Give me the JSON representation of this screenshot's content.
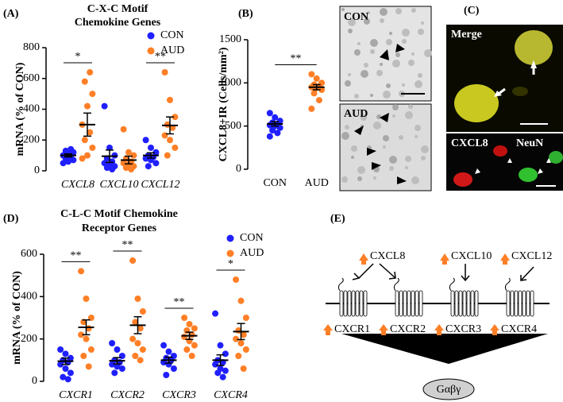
{
  "chart_data": [
    {
      "type": "dotplot",
      "panel": "(A)",
      "title": [
        "C-X-C Motif",
        "Chemokine Genes"
      ],
      "y_label": "mRNA (% of CON)",
      "categories": [
        "CXCL8",
        "CXCL10",
        "CXCL12"
      ],
      "ylim": [
        0,
        800
      ],
      "yticks": [
        0,
        200,
        400,
        600,
        800
      ],
      "series": [
        {
          "name": "CON",
          "color": "#1f1fff",
          "points": [
            [
              50,
              60,
              70,
              80,
              90,
              100,
              110,
              120,
              130,
              140
            ],
            [
              420,
              150,
              100,
              80,
              60,
              50,
              40,
              30,
              20,
              10
            ],
            [
              200,
              150,
              120,
              100,
              90,
              80,
              70,
              50,
              30
            ]
          ],
          "mean": [
            100,
            95,
            100
          ],
          "sem": [
            10,
            40,
            17
          ]
        },
        {
          "name": "AUD",
          "color": "#ff7f27",
          "points": [
            [
              80,
              100,
              150,
              200,
              250,
              300,
              420,
              500,
              580,
              640
            ],
            [
              270,
              120,
              100,
              80,
              60,
              50,
              40,
              30,
              20,
              10
            ],
            [
              640,
              460,
              350,
              300,
              280,
              230,
              200,
              150,
              100
            ]
          ],
          "mean": [
            300,
            70,
            295
          ],
          "sem": [
            75,
            25,
            55
          ]
        }
      ],
      "significance": [
        "*",
        null,
        "**"
      ]
    },
    {
      "type": "dotplot",
      "panel": "(B)",
      "y_label": "CXCL8+IR (Cells/mm²)",
      "categories": [
        "CON",
        "AUD"
      ],
      "ylim": [
        0,
        1500
      ],
      "yticks": [
        0,
        500,
        1000,
        1500
      ],
      "colors": [
        "#1f1fff",
        "#ff7f27"
      ],
      "points": [
        [
          650,
          600,
          560,
          540,
          520,
          510,
          500,
          480,
          450,
          420,
          380
        ],
        [
          1100,
          1050,
          1000,
          980,
          960,
          950,
          940,
          920,
          880,
          800,
          700
        ]
      ],
      "mean": [
        525,
        950
      ],
      "sem": [
        25,
        30
      ],
      "significance": "**"
    },
    {
      "type": "dotplot",
      "panel": "(D)",
      "title": [
        "C-L-C Motif Chemokine",
        "Receptor Genes"
      ],
      "y_label": "mRNA (% of CON)",
      "categories": [
        "CXCR1",
        "CXCR2",
        "CXCR3",
        "CXCR4"
      ],
      "ylim": [
        0,
        600
      ],
      "yticks": [
        0,
        200,
        400,
        600
      ],
      "series": [
        {
          "name": "CON",
          "color": "#1f1fff",
          "points": [
            [
              150,
              130,
              110,
              100,
              90,
              80,
              60,
              40,
              20,
              10
            ],
            [
              180,
              150,
              120,
              100,
              90,
              80,
              70,
              60,
              40
            ],
            [
              170,
              140,
              120,
              110,
              100,
              90,
              80,
              60,
              30
            ],
            [
              320,
              170,
              130,
              100,
              90,
              80,
              60,
              50,
              40,
              20
            ]
          ],
          "mean": [
            95,
            97,
            100,
            100
          ],
          "sem": [
            15,
            15,
            14,
            25
          ]
        },
        {
          "name": "AUD",
          "color": "#ff7f27",
          "points": [
            [
              520,
              390,
              300,
              280,
              250,
              220,
              200,
              150,
              120,
              70
            ],
            [
              570,
              390,
              330,
              280,
              250,
              200,
              180,
              150,
              120,
              100
            ],
            [
              300,
              270,
              250,
              240,
              220,
              210,
              190,
              170,
              150,
              120
            ],
            [
              480,
              380,
              300,
              240,
              220,
              200,
              180,
              150,
              120,
              60
            ]
          ],
          "mean": [
            255,
            265,
            215,
            235
          ],
          "sem": [
            35,
            40,
            17,
            38
          ]
        }
      ],
      "significance": [
        "**",
        "**",
        "**",
        "*"
      ]
    }
  ],
  "micrographs": {
    "panel": "(C)",
    "labels": [
      "CON",
      "AUD",
      "Merge",
      "CXCL8",
      "NeuN"
    ]
  },
  "diagram": {
    "panel": "(E)",
    "ligands": [
      "CXCL8",
      "CXCL10",
      "CXCL12"
    ],
    "receptors": [
      "CXCR1",
      "CXCR2",
      "CXCR3",
      "CXCR4"
    ],
    "g_protein": "Gαβγ"
  }
}
